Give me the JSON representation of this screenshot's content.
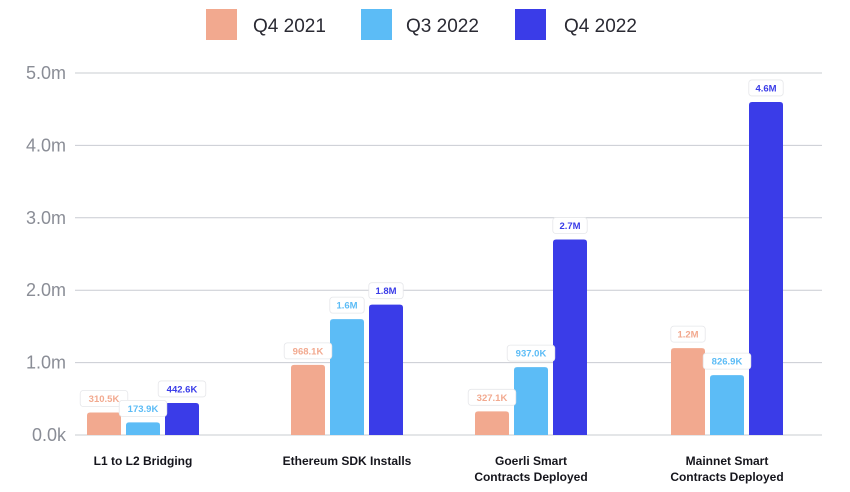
{
  "chart_data": {
    "type": "bar",
    "categories": [
      [
        "L1 to L2 Bridging"
      ],
      [
        "Ethereum SDK Installs"
      ],
      [
        "Goerli Smart",
        "Contracts Deployed"
      ],
      [
        "Mainnet Smart",
        "Contracts Deployed"
      ]
    ],
    "series": [
      {
        "name": "Q4 2021",
        "color": "#f2a98f",
        "values": [
          310500,
          968100,
          327100,
          1200000
        ],
        "labels": [
          "310.5K",
          "968.1K",
          "327.1K",
          "1.2M"
        ]
      },
      {
        "name": "Q3 2022",
        "color": "#5cbcf6",
        "values": [
          173900,
          1600000,
          937000,
          826900
        ],
        "labels": [
          "173.9K",
          "1.6M",
          "937.0K",
          "826.9K"
        ]
      },
      {
        "name": "Q4 2022",
        "color": "#3a3ce8",
        "values": [
          442600,
          1800000,
          2700000,
          4600000
        ],
        "labels": [
          "442.6K",
          "1.8M",
          "2.7M",
          "4.6M"
        ]
      }
    ],
    "yticks": [
      0,
      1000000,
      2000000,
      3000000,
      4000000,
      5000000
    ],
    "ytick_labels": [
      "0.0k",
      "1.0m",
      "2.0m",
      "3.0m",
      "4.0m",
      "5.0m"
    ],
    "ylim": [
      0,
      5000000
    ],
    "grid": true,
    "legend": "top-center",
    "title": "",
    "xlabel": "",
    "ylabel": ""
  }
}
